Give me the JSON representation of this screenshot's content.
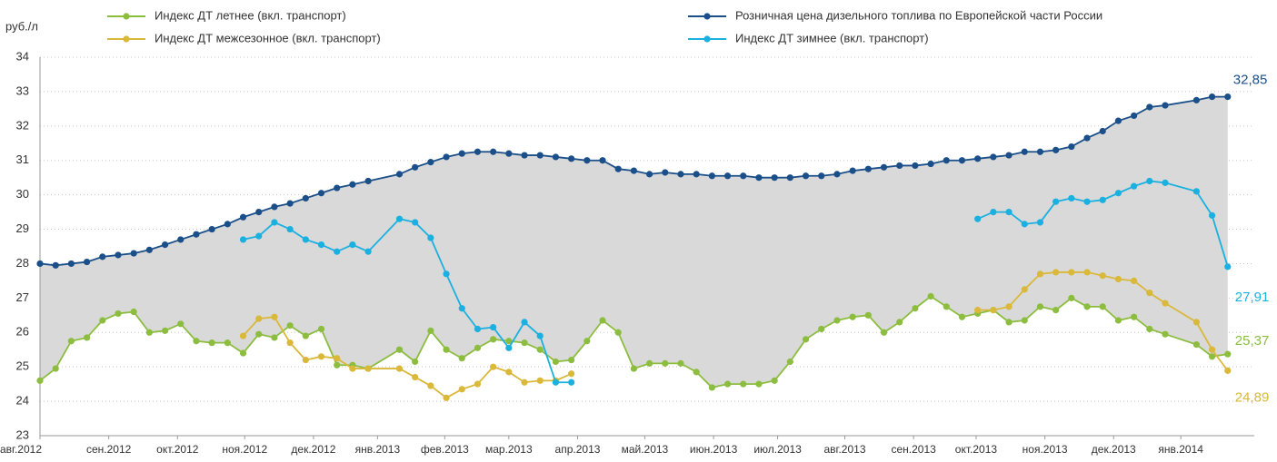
{
  "chart_data": {
    "type": "line",
    "y_label": "руб./л",
    "grid": true,
    "xlim": [
      0,
      77.7
    ],
    "ylim": [
      23,
      34
    ],
    "yticks": [
      23,
      24,
      25,
      26,
      27,
      28,
      29,
      30,
      31,
      32,
      33,
      34
    ],
    "xticks": [
      {
        "value": 0,
        "label": "авг.2012"
      },
      {
        "value": 4.4,
        "label": "сен.2012"
      },
      {
        "value": 8.8,
        "label": "окт.2012"
      },
      {
        "value": 13.1,
        "label": "ноя.2012"
      },
      {
        "value": 17.5,
        "label": "дек.2012"
      },
      {
        "value": 21.6,
        "label": "янв.2013"
      },
      {
        "value": 25.9,
        "label": "фев.2013"
      },
      {
        "value": 30,
        "label": "мар.2013"
      },
      {
        "value": 34.4,
        "label": "апр.2013"
      },
      {
        "value": 38.7,
        "label": "май.2013"
      },
      {
        "value": 43.1,
        "label": "июн.2013"
      },
      {
        "value": 47.2,
        "label": "июл.2013"
      },
      {
        "value": 51.5,
        "label": "авг.2013"
      },
      {
        "value": 55.9,
        "label": "сен.2013"
      },
      {
        "value": 59.9,
        "label": "окт.2013"
      },
      {
        "value": 64.3,
        "label": "ноя.2013"
      },
      {
        "value": 68.7,
        "label": "дек.2013"
      },
      {
        "value": 73,
        "label": "янв.2014"
      }
    ],
    "series": [
      {
        "name": "Индекс ДТ летнее (вкл. транспорт)",
        "color": "#8cbd3f",
        "x": [
          0,
          1,
          2,
          3,
          4,
          5,
          6,
          7,
          8,
          9,
          10,
          11,
          12,
          13,
          14,
          15,
          16,
          17,
          18,
          19,
          20,
          21,
          23,
          24,
          25,
          26,
          27,
          28,
          29,
          30,
          31,
          32,
          33,
          34,
          35,
          36,
          37,
          38,
          39,
          40,
          41,
          42,
          43,
          44,
          45,
          46,
          47,
          48,
          49,
          50,
          51,
          52,
          53,
          54,
          55,
          56,
          57,
          58,
          59,
          60,
          61,
          62,
          63,
          64,
          65,
          66,
          67,
          68,
          69,
          70,
          71,
          72,
          74,
          75,
          76
        ],
        "values": [
          24.6,
          24.95,
          25.75,
          25.85,
          26.35,
          26.55,
          26.6,
          26.0,
          26.05,
          26.25,
          25.75,
          25.7,
          25.7,
          25.4,
          25.95,
          25.85,
          26.2,
          25.9,
          26.1,
          25.05,
          25.05,
          24.95,
          25.5,
          25.15,
          26.05,
          25.5,
          25.25,
          25.55,
          25.8,
          25.75,
          25.7,
          25.5,
          25.15,
          25.2,
          25.75,
          26.35,
          26.0,
          24.95,
          25.1,
          25.1,
          25.1,
          24.85,
          24.4,
          24.5,
          24.5,
          24.5,
          24.6,
          25.15,
          25.8,
          26.1,
          26.35,
          26.45,
          26.5,
          26.0,
          26.3,
          26.7,
          27.05,
          26.75,
          26.45,
          26.55,
          26.65,
          26.3,
          26.35,
          26.75,
          26.65,
          27.0,
          26.75,
          26.75,
          26.35,
          26.45,
          26.1,
          25.95,
          25.65,
          25.3,
          25.37
        ],
        "value_labels": {
          "74": "25,37"
        }
      },
      {
        "name": "Индекс ДТ межсезонное (вкл. транспорт)",
        "color": "#d9b83a",
        "x": [
          13,
          14,
          15,
          16,
          17,
          18,
          19,
          20,
          21,
          23,
          24,
          25,
          26,
          27,
          28,
          29,
          30,
          31,
          32,
          33,
          34,
          60,
          61,
          62,
          63,
          64,
          65,
          66,
          67,
          68,
          69,
          70,
          71,
          72,
          74,
          75,
          76
        ],
        "values": [
          25.9,
          26.4,
          26.45,
          25.7,
          25.2,
          25.3,
          25.25,
          24.95,
          24.95,
          24.95,
          24.7,
          24.45,
          24.1,
          24.35,
          24.5,
          25.0,
          24.85,
          24.55,
          24.6,
          24.6,
          24.8,
          26.65,
          26.65,
          26.75,
          27.25,
          27.7,
          27.75,
          27.75,
          27.75,
          27.65,
          27.55,
          27.5,
          27.15,
          26.85,
          26.3,
          25.5,
          24.89
        ],
        "value_labels": {
          "36": "24,89"
        }
      },
      {
        "name": "Розничная цена дизельного топлива  по Европейской части России",
        "color": "#1b4f8a",
        "x": [
          0,
          1,
          2,
          3,
          4,
          5,
          6,
          7,
          8,
          9,
          10,
          11,
          12,
          13,
          14,
          15,
          16,
          17,
          18,
          19,
          20,
          21,
          23,
          24,
          25,
          26,
          27,
          28,
          29,
          30,
          31,
          32,
          33,
          34,
          35,
          36,
          37,
          38,
          39,
          40,
          41,
          42,
          43,
          44,
          45,
          46,
          47,
          48,
          49,
          50,
          51,
          52,
          53,
          54,
          55,
          56,
          57,
          58,
          59,
          60,
          61,
          62,
          63,
          64,
          65,
          66,
          67,
          68,
          69,
          70,
          71,
          72,
          74,
          75,
          76
        ],
        "values": [
          28.0,
          27.95,
          28.0,
          28.05,
          28.2,
          28.25,
          28.3,
          28.4,
          28.55,
          28.7,
          28.85,
          29.0,
          29.15,
          29.35,
          29.5,
          29.65,
          29.75,
          29.9,
          30.05,
          30.2,
          30.3,
          30.4,
          30.6,
          30.8,
          30.95,
          31.1,
          31.2,
          31.25,
          31.25,
          31.2,
          31.15,
          31.15,
          31.1,
          31.05,
          31.0,
          31.0,
          30.75,
          30.7,
          30.6,
          30.65,
          30.6,
          30.6,
          30.55,
          30.55,
          30.55,
          30.5,
          30.5,
          30.5,
          30.55,
          30.55,
          30.6,
          30.7,
          30.75,
          30.8,
          30.85,
          30.85,
          30.9,
          31.0,
          31.0,
          31.05,
          31.1,
          31.15,
          31.25,
          31.25,
          31.3,
          31.4,
          31.65,
          31.85,
          32.15,
          32.3,
          32.55,
          32.6,
          32.75,
          32.85,
          32.85
        ],
        "value_labels": {
          "74": "32,85"
        }
      },
      {
        "name": "Индекс ДТ зимнее (вкл. транспорт)",
        "color": "#1ab0e0",
        "x": [
          13,
          14,
          15,
          16,
          17,
          18,
          19,
          20,
          21,
          23,
          24,
          25,
          26,
          27,
          28,
          29,
          30,
          31,
          32,
          33,
          34,
          60,
          61,
          62,
          63,
          64,
          65,
          66,
          67,
          68,
          69,
          70,
          71,
          72,
          74,
          75,
          76
        ],
        "values": [
          28.7,
          28.8,
          29.2,
          29.0,
          28.7,
          28.55,
          28.35,
          28.55,
          28.35,
          29.3,
          29.2,
          28.75,
          27.7,
          26.7,
          26.1,
          26.15,
          25.55,
          26.3,
          25.9,
          24.55,
          24.55,
          29.3,
          29.5,
          29.5,
          29.15,
          29.2,
          29.8,
          29.9,
          29.8,
          29.85,
          30.05,
          30.25,
          30.4,
          30.35,
          30.1,
          29.4,
          27.91
        ],
        "value_labels": {
          "36": "27,91"
        }
      }
    ]
  }
}
